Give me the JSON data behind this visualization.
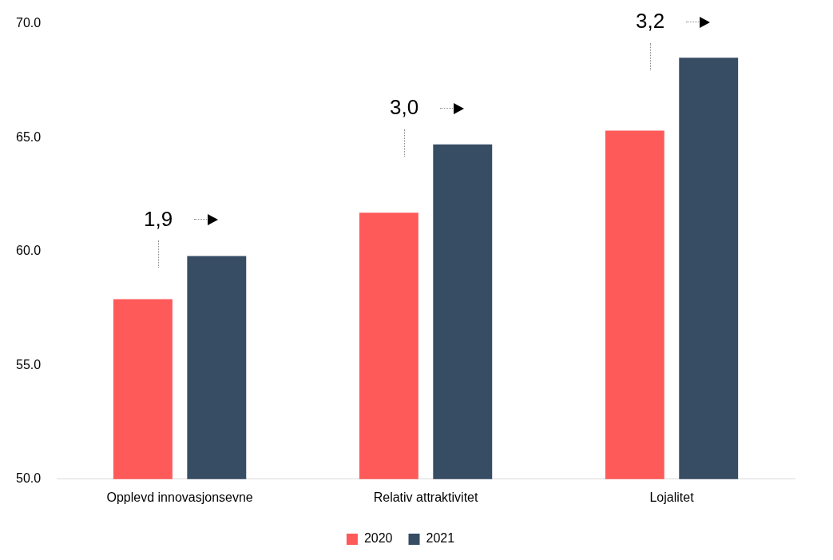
{
  "chart_data": {
    "type": "bar",
    "categories": [
      "Opplevd innovasjonsevne",
      "Relativ attraktivitet",
      "Lojalitet"
    ],
    "series": [
      {
        "name": "2020",
        "color": "#ff5a5a",
        "values": [
          57.9,
          61.7,
          65.3
        ]
      },
      {
        "name": "2021",
        "color": "#364d63",
        "values": [
          59.8,
          64.7,
          68.5
        ]
      }
    ],
    "ylim": [
      50,
      70
    ],
    "yticks": [
      {
        "value": 50,
        "label": "50.0"
      },
      {
        "value": 55,
        "label": "55.0"
      },
      {
        "value": 60,
        "label": "60.0"
      },
      {
        "value": 65,
        "label": "65.0"
      },
      {
        "value": 70,
        "label": "70.0"
      }
    ],
    "grid": false,
    "legend": "bottom",
    "annotations": [
      "1,9",
      "3,0",
      "3,2"
    ]
  }
}
